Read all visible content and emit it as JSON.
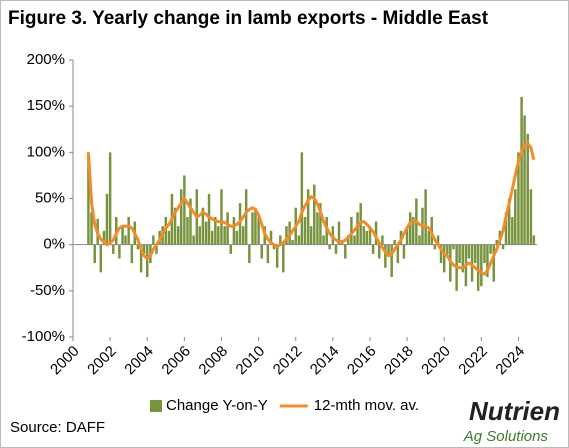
{
  "chart_data": {
    "type": "bar-line",
    "title": "Figure 3. Yearly change in lamb exports - Middle East",
    "x": [
      2000.83,
      2001.0,
      2001.17,
      2001.33,
      2001.5,
      2001.67,
      2001.83,
      2002.0,
      2002.17,
      2002.33,
      2002.5,
      2002.67,
      2002.83,
      2003.0,
      2003.17,
      2003.33,
      2003.5,
      2003.67,
      2003.83,
      2004.0,
      2004.17,
      2004.33,
      2004.5,
      2004.67,
      2004.83,
      2005.0,
      2005.17,
      2005.33,
      2005.5,
      2005.67,
      2005.83,
      2006.0,
      2006.17,
      2006.33,
      2006.5,
      2006.67,
      2006.83,
      2007.0,
      2007.17,
      2007.33,
      2007.5,
      2007.67,
      2007.83,
      2008.0,
      2008.17,
      2008.33,
      2008.5,
      2008.67,
      2008.83,
      2009.0,
      2009.17,
      2009.33,
      2009.5,
      2009.67,
      2009.83,
      2010.0,
      2010.17,
      2010.33,
      2010.5,
      2010.67,
      2010.83,
      2011.0,
      2011.17,
      2011.33,
      2011.5,
      2011.67,
      2011.83,
      2012.0,
      2012.17,
      2012.33,
      2012.5,
      2012.67,
      2012.83,
      2013.0,
      2013.17,
      2013.33,
      2013.5,
      2013.67,
      2013.83,
      2014.0,
      2014.17,
      2014.33,
      2014.5,
      2014.67,
      2014.83,
      2015.0,
      2015.17,
      2015.33,
      2015.5,
      2015.67,
      2015.83,
      2016.0,
      2016.17,
      2016.33,
      2016.5,
      2016.67,
      2016.83,
      2017.0,
      2017.17,
      2017.33,
      2017.5,
      2017.67,
      2017.83,
      2018.0,
      2018.17,
      2018.33,
      2018.5,
      2018.67,
      2018.83,
      2019.0,
      2019.17,
      2019.33,
      2019.5,
      2019.67,
      2019.83,
      2020.0,
      2020.17,
      2020.33,
      2020.5,
      2020.67,
      2020.83,
      2021.0,
      2021.17,
      2021.33,
      2021.5,
      2021.67,
      2021.83,
      2022.0,
      2022.17,
      2022.33,
      2022.5,
      2022.67,
      2022.83,
      2023.0,
      2023.17,
      2023.33,
      2023.5,
      2023.67,
      2023.83,
      2024.0,
      2024.17,
      2024.33,
      2024.5,
      2024.67,
      2024.83
    ],
    "series": [
      {
        "name": "Change Y-on-Y",
        "type": "bar",
        "color": "#77933c",
        "values": [
          100,
          35,
          -20,
          28,
          -30,
          15,
          55,
          100,
          -10,
          30,
          -15,
          20,
          10,
          30,
          -20,
          25,
          -5,
          -30,
          -10,
          -35,
          -20,
          10,
          -10,
          15,
          20,
          30,
          15,
          55,
          40,
          20,
          60,
          75,
          30,
          50,
          10,
          60,
          20,
          40,
          25,
          55,
          15,
          30,
          20,
          60,
          20,
          35,
          -10,
          30,
          15,
          45,
          20,
          60,
          -20,
          35,
          40,
          30,
          -15,
          20,
          -20,
          15,
          -5,
          -25,
          10,
          -30,
          20,
          25,
          5,
          40,
          10,
          100,
          30,
          60,
          20,
          65,
          35,
          45,
          10,
          30,
          -5,
          20,
          -10,
          25,
          5,
          -15,
          10,
          30,
          10,
          35,
          45,
          20,
          15,
          20,
          -10,
          25,
          -15,
          10,
          -25,
          -10,
          -35,
          5,
          -20,
          15,
          -15,
          20,
          35,
          30,
          50,
          10,
          40,
          60,
          15,
          30,
          -5,
          10,
          -20,
          -30,
          -10,
          -40,
          -5,
          -50,
          -20,
          -30,
          -45,
          -15,
          -40,
          -20,
          -50,
          -45,
          -20,
          -35,
          -10,
          -40,
          5,
          15,
          -5,
          35,
          50,
          30,
          60,
          100,
          160,
          140,
          120,
          60,
          10
        ]
      },
      {
        "name": "12-mth mov. av.",
        "type": "line",
        "color": "#f28c28",
        "values": [
          100,
          45,
          22,
          12,
          6,
          3,
          0,
          2,
          5,
          12,
          18,
          20,
          20,
          20,
          18,
          12,
          5,
          -5,
          -12,
          -15,
          -12,
          -5,
          0,
          5,
          12,
          18,
          22,
          28,
          35,
          40,
          45,
          50,
          45,
          40,
          35,
          30,
          32,
          35,
          33,
          30,
          28,
          26,
          25,
          25,
          24,
          22,
          20,
          20,
          22,
          25,
          30,
          35,
          38,
          40,
          38,
          32,
          22,
          12,
          6,
          2,
          0,
          -2,
          0,
          2,
          6,
          10,
          15,
          20,
          25,
          35,
          42,
          48,
          52,
          50,
          44,
          36,
          25,
          18,
          12,
          8,
          5,
          3,
          3,
          5,
          8,
          12,
          16,
          20,
          24,
          25,
          22,
          18,
          14,
          8,
          2,
          -3,
          -8,
          -12,
          -10,
          -5,
          0,
          5,
          12,
          18,
          24,
          26,
          25,
          22,
          20,
          20,
          18,
          12,
          5,
          0,
          -5,
          -10,
          -12,
          -18,
          -22,
          -24,
          -25,
          -25,
          -22,
          -20,
          -22,
          -25,
          -28,
          -30,
          -32,
          -28,
          -20,
          -12,
          -5,
          5,
          15,
          30,
          45,
          60,
          75,
          90,
          100,
          108,
          110,
          105,
          92
        ]
      }
    ],
    "xlim": [
      2000,
      2025
    ],
    "xticks": [
      2000,
      2002,
      2004,
      2006,
      2008,
      2010,
      2012,
      2014,
      2016,
      2018,
      2020,
      2022,
      2024
    ],
    "ylim": [
      -100,
      200
    ],
    "yticks": [
      {
        "value": -100,
        "label": "-100%"
      },
      {
        "value": -50,
        "label": "-50%"
      },
      {
        "value": 0,
        "label": "0%"
      },
      {
        "value": 50,
        "label": "50%"
      },
      {
        "value": 100,
        "label": "100%"
      },
      {
        "value": 150,
        "label": "150%"
      },
      {
        "value": 200,
        "label": "200%"
      }
    ],
    "legend": "bottom"
  },
  "source": "Source: DAFF",
  "logo": {
    "name": "Nutrien",
    "tagline": "Ag Solutions"
  }
}
